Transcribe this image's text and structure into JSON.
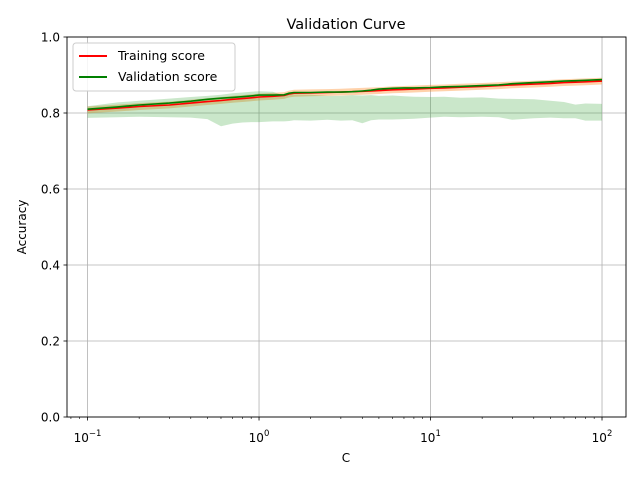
{
  "chart_data": {
    "type": "line",
    "title": "Validation Curve",
    "xlabel": "C",
    "ylabel": "Accuracy",
    "xscale": "log",
    "xlim": [
      0.0759,
      138
    ],
    "ylim": [
      0.0,
      1.0
    ],
    "grid": true,
    "legend": {
      "position": "top-left"
    },
    "x_ticks": [
      {
        "value": 0.1,
        "base": "10",
        "exp": "−1"
      },
      {
        "value": 1,
        "base": "10",
        "exp": "0"
      },
      {
        "value": 10,
        "base": "10",
        "exp": "1"
      },
      {
        "value": 100,
        "base": "10",
        "exp": "2"
      }
    ],
    "y_ticks": [
      "0.0",
      "0.2",
      "0.4",
      "0.6",
      "0.8",
      "1.0"
    ],
    "x": [
      0.1,
      0.15,
      0.2,
      0.3,
      0.4,
      0.5,
      0.6,
      0.7,
      0.8,
      0.9,
      1.0,
      1.2,
      1.4,
      1.5,
      1.6,
      2.0,
      2.5,
      3.0,
      3.5,
      4.0,
      4.5,
      5.0,
      6.0,
      7.0,
      8.0,
      10.0,
      12.0,
      15.0,
      20.0,
      25.0,
      30.0,
      40.0,
      50.0,
      60.0,
      70.0,
      80.0,
      100.0
    ],
    "series": [
      {
        "name": "Training score",
        "color": "#ff0000",
        "band_color": "#ff7f0e",
        "values": [
          0.808,
          0.813,
          0.817,
          0.821,
          0.826,
          0.83,
          0.833,
          0.836,
          0.838,
          0.84,
          0.842,
          0.844,
          0.846,
          0.85,
          0.852,
          0.853,
          0.854,
          0.855,
          0.856,
          0.857,
          0.858,
          0.859,
          0.861,
          0.862,
          0.863,
          0.865,
          0.866,
          0.868,
          0.87,
          0.872,
          0.874,
          0.876,
          0.878,
          0.88,
          0.881,
          0.882,
          0.884
        ],
        "band_low": [
          0.799,
          0.804,
          0.808,
          0.812,
          0.817,
          0.821,
          0.824,
          0.827,
          0.829,
          0.831,
          0.833,
          0.835,
          0.837,
          0.841,
          0.843,
          0.844,
          0.845,
          0.846,
          0.847,
          0.848,
          0.849,
          0.85,
          0.852,
          0.853,
          0.854,
          0.856,
          0.857,
          0.859,
          0.861,
          0.863,
          0.865,
          0.867,
          0.869,
          0.871,
          0.872,
          0.873,
          0.875
        ],
        "band_high": [
          0.817,
          0.822,
          0.826,
          0.83,
          0.835,
          0.839,
          0.842,
          0.845,
          0.847,
          0.849,
          0.851,
          0.853,
          0.855,
          0.859,
          0.861,
          0.862,
          0.863,
          0.864,
          0.865,
          0.866,
          0.867,
          0.868,
          0.87,
          0.871,
          0.872,
          0.874,
          0.875,
          0.877,
          0.879,
          0.881,
          0.883,
          0.885,
          0.887,
          0.889,
          0.89,
          0.891,
          0.893
        ]
      },
      {
        "name": "Validation score",
        "color": "#008000",
        "band_color": "#2ca02c",
        "values": [
          0.81,
          0.816,
          0.821,
          0.826,
          0.831,
          0.836,
          0.839,
          0.841,
          0.843,
          0.845,
          0.847,
          0.847,
          0.848,
          0.852,
          0.854,
          0.854,
          0.855,
          0.855,
          0.856,
          0.858,
          0.86,
          0.863,
          0.865,
          0.866,
          0.866,
          0.867,
          0.869,
          0.87,
          0.872,
          0.874,
          0.877,
          0.88,
          0.882,
          0.884,
          0.885,
          0.886,
          0.888
        ],
        "band_low": [
          0.787,
          0.789,
          0.79,
          0.789,
          0.788,
          0.784,
          0.765,
          0.772,
          0.775,
          0.776,
          0.776,
          0.778,
          0.778,
          0.779,
          0.781,
          0.78,
          0.782,
          0.78,
          0.781,
          0.773,
          0.781,
          0.783,
          0.783,
          0.784,
          0.785,
          0.788,
          0.79,
          0.789,
          0.79,
          0.789,
          0.782,
          0.786,
          0.788,
          0.786,
          0.786,
          0.78,
          0.78
        ],
        "band_high": [
          0.818,
          0.828,
          0.832,
          0.838,
          0.842,
          0.845,
          0.848,
          0.852,
          0.854,
          0.856,
          0.857,
          0.856,
          0.846,
          0.849,
          0.849,
          0.848,
          0.845,
          0.845,
          0.847,
          0.846,
          0.847,
          0.845,
          0.846,
          0.844,
          0.843,
          0.842,
          0.843,
          0.84,
          0.841,
          0.838,
          0.837,
          0.836,
          0.832,
          0.829,
          0.822,
          0.825,
          0.824
        ]
      }
    ]
  }
}
